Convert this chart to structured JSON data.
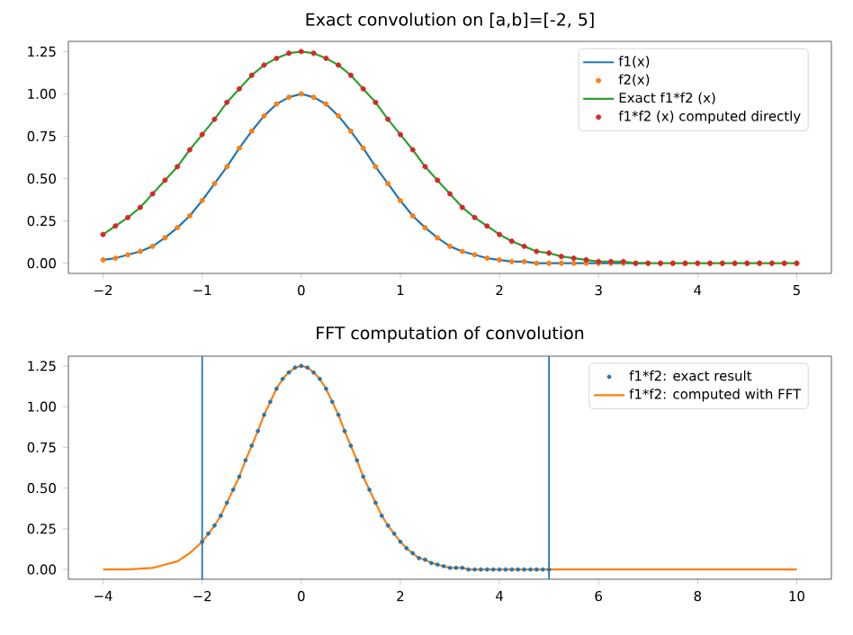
{
  "chart_data": [
    {
      "type": "line",
      "title": "Exact convolution on [a,b]=[-2, 5]",
      "legend": "top right",
      "xlim": [
        -2.35,
        5.35
      ],
      "ylim": [
        -0.06,
        1.31
      ],
      "xticks": [
        {
          "value": -2,
          "label": "−2"
        },
        {
          "value": -1,
          "label": "−1"
        },
        0,
        1,
        2,
        3,
        4,
        5
      ],
      "yticks": [
        {
          "value": 0,
          "label": "0.00"
        },
        0.25,
        {
          "value": 0.5,
          "label": "0.50"
        },
        0.75,
        {
          "value": 1,
          "label": "1.00"
        },
        1.25
      ],
      "x": [
        -2,
        -1.875,
        -1.75,
        -1.625,
        -1.5,
        -1.375,
        -1.25,
        -1.125,
        -1,
        -0.875,
        -0.75,
        -0.625,
        -0.5,
        -0.375,
        -0.25,
        -0.125,
        0,
        0.125,
        0.25,
        0.375,
        0.5,
        0.625,
        0.75,
        0.875,
        1,
        1.125,
        1.25,
        1.375,
        1.5,
        1.625,
        1.75,
        1.875,
        2,
        2.125,
        2.25,
        2.375,
        2.5,
        2.625,
        2.75,
        2.875,
        3,
        3.125,
        3.25,
        3.375,
        3.5,
        3.625,
        3.75,
        3.875,
        4,
        4.125,
        4.25,
        4.375,
        4.5,
        4.625,
        4.75,
        4.875,
        5
      ],
      "series": [
        {
          "name": "f1(x)",
          "color": "#1f77b4",
          "values": [
            0.02,
            0.03,
            0.05,
            0.07,
            0.1,
            0.15,
            0.21,
            0.28,
            0.37,
            0.47,
            0.57,
            0.68,
            0.78,
            0.87,
            0.94,
            0.98,
            1.0,
            0.98,
            0.94,
            0.87,
            0.78,
            0.68,
            0.57,
            0.47,
            0.37,
            0.28,
            0.21,
            0.15,
            0.1,
            0.07,
            0.05,
            0.03,
            0.02,
            0.01,
            0.01,
            0,
            0,
            0,
            0,
            0,
            0,
            0,
            0,
            0,
            0,
            null,
            null,
            null,
            null,
            null,
            null,
            null,
            null,
            null,
            null,
            null,
            null
          ]
        },
        {
          "name": "f2(x)",
          "type": "scatter",
          "marker": "circle",
          "color": "#ff7f0e",
          "values": [
            0.02,
            0.03,
            0.05,
            0.07,
            0.1,
            0.15,
            0.21,
            0.28,
            0.37,
            0.47,
            0.57,
            0.68,
            0.78,
            0.87,
            0.94,
            0.98,
            1.0,
            0.98,
            0.94,
            0.87,
            0.78,
            0.68,
            0.57,
            0.47,
            0.37,
            0.28,
            0.21,
            0.15,
            0.1,
            0.07,
            0.05,
            0.03,
            0.02,
            0.01,
            0.01,
            0,
            0,
            0,
            0,
            0,
            0,
            0,
            0,
            0,
            0,
            0,
            0,
            0,
            0,
            0,
            0,
            0,
            0,
            0,
            0,
            0,
            0
          ]
        },
        {
          "name": "Exact f1*f2 (x)",
          "color": "#2ca02c",
          "values": [
            0.17,
            0.22,
            0.27,
            0.33,
            0.41,
            0.49,
            0.57,
            0.67,
            0.76,
            0.85,
            0.95,
            1.03,
            1.11,
            1.17,
            1.21,
            1.24,
            1.25,
            1.24,
            1.21,
            1.17,
            1.11,
            1.03,
            0.95,
            0.85,
            0.76,
            0.67,
            0.57,
            0.49,
            0.41,
            0.33,
            0.27,
            0.22,
            0.17,
            0.13,
            0.1,
            0.07,
            0.06,
            0.04,
            0.03,
            0.02,
            0.01,
            0.01,
            0.01,
            0,
            0,
            0,
            0,
            0,
            0,
            0,
            0,
            0,
            0,
            0,
            0,
            0,
            0
          ]
        },
        {
          "name": "f1*f2 (x) computed directly",
          "type": "scatter",
          "marker": "circle",
          "color": "#d62728",
          "values": [
            0.17,
            0.22,
            0.27,
            0.33,
            0.41,
            0.49,
            0.57,
            0.67,
            0.76,
            0.85,
            0.95,
            1.03,
            1.11,
            1.17,
            1.21,
            1.24,
            1.25,
            1.24,
            1.21,
            1.17,
            1.11,
            1.03,
            0.95,
            0.85,
            0.76,
            0.67,
            0.57,
            0.49,
            0.41,
            0.33,
            0.27,
            0.22,
            0.17,
            0.13,
            0.1,
            0.07,
            0.06,
            0.04,
            0.03,
            0.02,
            0.01,
            0.01,
            0.01,
            0,
            0,
            0,
            0,
            0,
            0,
            0,
            0,
            0,
            0,
            0,
            0,
            0,
            0
          ]
        }
      ]
    },
    {
      "type": "line",
      "title": "FFT computation of convolution",
      "legend": "top right",
      "xlim": [
        -4.7,
        10.7
      ],
      "ylim": [
        -0.06,
        1.31
      ],
      "xticks": [
        {
          "value": -4,
          "label": "−4"
        },
        {
          "value": -2,
          "label": "−2"
        },
        0,
        2,
        4,
        6,
        8,
        10
      ],
      "yticks": [
        {
          "value": 0,
          "label": "0.00"
        },
        0.25,
        {
          "value": 0.5,
          "label": "0.50"
        },
        0.75,
        {
          "value": 1,
          "label": "1.00"
        },
        1.25
      ],
      "ref_lines": [
        {
          "axis": "x",
          "value": -2,
          "color": "#1f77b4"
        },
        {
          "axis": "x",
          "value": 5,
          "color": "#1f77b4"
        }
      ],
      "x": [
        -2,
        -1.875,
        -1.75,
        -1.625,
        -1.5,
        -1.375,
        -1.25,
        -1.125,
        -1,
        -0.875,
        -0.75,
        -0.625,
        -0.5,
        -0.375,
        -0.25,
        -0.125,
        0,
        0.125,
        0.25,
        0.375,
        0.5,
        0.625,
        0.75,
        0.875,
        1,
        1.125,
        1.25,
        1.375,
        1.5,
        1.625,
        1.75,
        1.875,
        2,
        2.125,
        2.25,
        2.375,
        2.5,
        2.625,
        2.75,
        2.875,
        3,
        3.125,
        3.25,
        3.375,
        3.5,
        3.625,
        3.75,
        3.875,
        4,
        4.125,
        4.25,
        4.375,
        4.5,
        4.625,
        4.75,
        4.875,
        5
      ],
      "series": [
        {
          "name": "f1*f2: exact result",
          "type": "scatter",
          "marker": "circle",
          "color": "#1f77b4",
          "values": [
            0.17,
            0.22,
            0.27,
            0.33,
            0.41,
            0.49,
            0.57,
            0.67,
            0.76,
            0.85,
            0.95,
            1.03,
            1.11,
            1.17,
            1.21,
            1.24,
            1.25,
            1.24,
            1.21,
            1.17,
            1.11,
            1.03,
            0.95,
            0.85,
            0.76,
            0.67,
            0.57,
            0.49,
            0.41,
            0.33,
            0.27,
            0.22,
            0.17,
            0.13,
            0.1,
            0.07,
            0.06,
            0.04,
            0.03,
            0.02,
            0.01,
            0.01,
            0.01,
            0,
            0,
            0,
            0,
            0,
            0,
            0,
            0,
            0,
            0,
            0,
            0,
            0,
            0
          ]
        },
        {
          "name": "f1*f2: computed with FFT",
          "color": "#ff7f0e",
          "x": [
            -4,
            -3.5,
            -3,
            -2.75,
            -2.5,
            -2.25,
            -2,
            -1.875,
            -1.75,
            -1.625,
            -1.5,
            -1.375,
            -1.25,
            -1.125,
            -1,
            -0.875,
            -0.75,
            -0.625,
            -0.5,
            -0.375,
            -0.25,
            -0.125,
            0,
            0.125,
            0.25,
            0.375,
            0.5,
            0.625,
            0.75,
            0.875,
            1,
            1.125,
            1.25,
            1.375,
            1.5,
            1.625,
            1.75,
            1.875,
            2,
            2.125,
            2.25,
            2.375,
            2.5,
            2.625,
            2.75,
            2.875,
            3,
            3.125,
            3.25,
            3.375,
            3.5,
            3.625,
            3.75,
            3.875,
            4,
            4.125,
            4.25,
            4.375,
            4.5,
            4.625,
            4.75,
            4.875,
            5,
            6,
            7,
            8,
            9,
            10
          ],
          "values": [
            0,
            0,
            0.01,
            0.03,
            0.05,
            0.1,
            0.17,
            0.22,
            0.27,
            0.33,
            0.41,
            0.49,
            0.57,
            0.67,
            0.76,
            0.85,
            0.95,
            1.03,
            1.11,
            1.17,
            1.21,
            1.24,
            1.25,
            1.24,
            1.21,
            1.17,
            1.11,
            1.03,
            0.95,
            0.85,
            0.76,
            0.67,
            0.57,
            0.49,
            0.41,
            0.33,
            0.27,
            0.22,
            0.17,
            0.13,
            0.1,
            0.07,
            0.06,
            0.04,
            0.03,
            0.02,
            0.01,
            0.01,
            0.01,
            0,
            0,
            0,
            0,
            0,
            0,
            0,
            0,
            0,
            0,
            0,
            0,
            0,
            0,
            0,
            0,
            0,
            0,
            0
          ]
        }
      ]
    }
  ]
}
